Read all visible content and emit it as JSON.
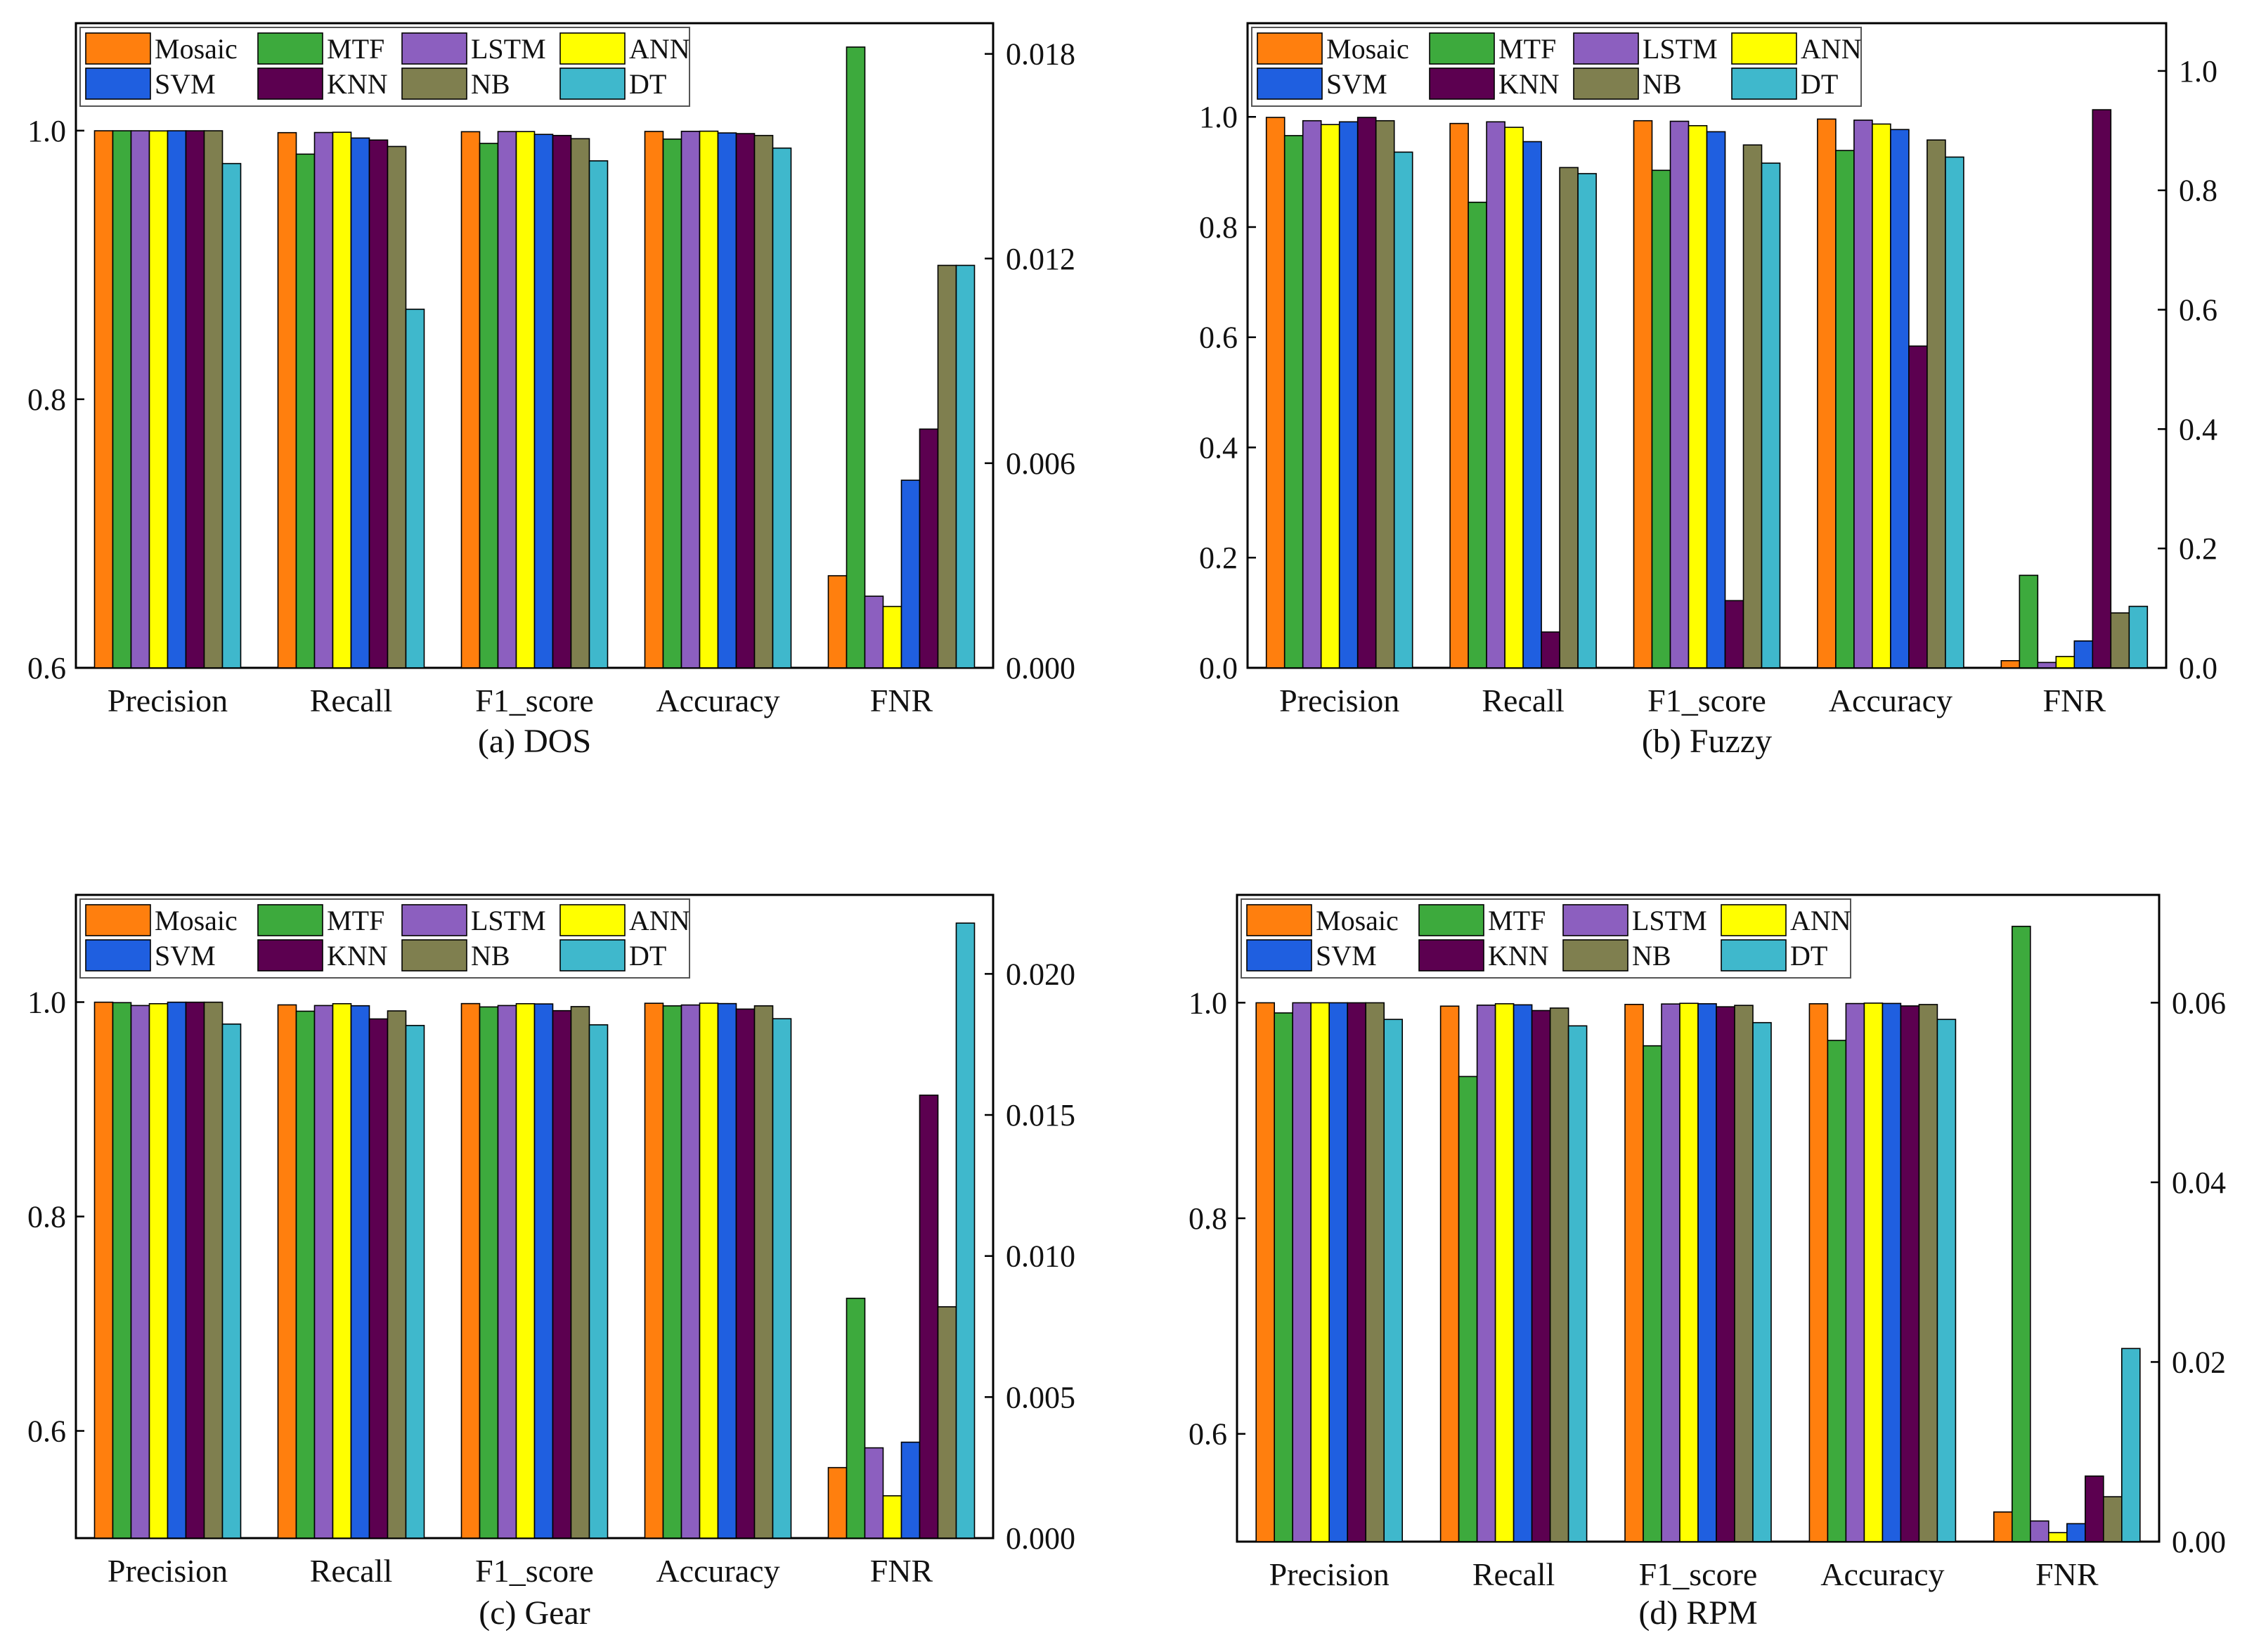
{
  "chart_data": [
    {
      "id": "dos",
      "type": "bar",
      "caption": "(a) DOS",
      "categories": [
        "Precision",
        "Recall",
        "F1_score",
        "Accuracy",
        "FNR"
      ],
      "series": [
        {
          "name": "Mosaic",
          "values": [
            0.9999,
            0.9985,
            0.9992,
            0.9994,
            0.0027
          ]
        },
        {
          "name": "MTF",
          "values": [
            0.9999,
            0.9825,
            0.9905,
            0.9937,
            0.0182
          ]
        },
        {
          "name": "LSTM",
          "values": [
            0.9999,
            0.9986,
            0.9993,
            0.9995,
            0.0021
          ]
        },
        {
          "name": "ANN",
          "values": [
            0.9998,
            0.9988,
            0.9993,
            0.9996,
            0.0018
          ]
        },
        {
          "name": "SVM",
          "values": [
            0.9999,
            0.9945,
            0.9972,
            0.9983,
            0.0055
          ]
        },
        {
          "name": "KNN",
          "values": [
            0.9999,
            0.993,
            0.9964,
            0.9978,
            0.007
          ]
        },
        {
          "name": "NB",
          "values": [
            0.9999,
            0.9882,
            0.994,
            0.9964,
            0.0118
          ]
        },
        {
          "name": "DT",
          "values": [
            0.9755,
            0.867,
            0.9775,
            0.987,
            0.0118
          ]
        }
      ],
      "primary_axis": {
        "ylim": [
          0.6,
          1.08
        ],
        "ticks": [
          "0.6",
          "0.8",
          "1.0"
        ],
        "tick_values": [
          0.6,
          0.8,
          1.0
        ]
      },
      "secondary_axis": {
        "ylim": [
          0.0,
          0.0189
        ],
        "ticks": [
          "0.000",
          "0.006",
          "0.012",
          "0.018"
        ],
        "tick_values": [
          0.0,
          0.006,
          0.012,
          0.018
        ],
        "applies_to": "FNR"
      },
      "legend": "top-left"
    },
    {
      "id": "fuzzy",
      "type": "bar",
      "caption": "(b) Fuzzy",
      "categories": [
        "Precision",
        "Recall",
        "F1_score",
        "Accuracy",
        "FNR"
      ],
      "series": [
        {
          "name": "Mosaic",
          "values": [
            0.999,
            0.988,
            0.993,
            0.996,
            0.012
          ]
        },
        {
          "name": "MTF",
          "values": [
            0.966,
            0.845,
            0.903,
            0.939,
            0.155
          ]
        },
        {
          "name": "LSTM",
          "values": [
            0.993,
            0.991,
            0.992,
            0.994,
            0.009
          ]
        },
        {
          "name": "ANN",
          "values": [
            0.986,
            0.981,
            0.984,
            0.987,
            0.019
          ]
        },
        {
          "name": "SVM",
          "values": [
            0.991,
            0.955,
            0.973,
            0.977,
            0.045
          ]
        },
        {
          "name": "KNN",
          "values": [
            0.999,
            0.065,
            0.122,
            0.584,
            0.935
          ]
        },
        {
          "name": "NB",
          "values": [
            0.993,
            0.908,
            0.949,
            0.958,
            0.092
          ]
        },
        {
          "name": "DT",
          "values": [
            0.936,
            0.897,
            0.916,
            0.927,
            0.103
          ]
        }
      ],
      "primary_axis": {
        "ylim": [
          0.0,
          1.17
        ],
        "ticks": [
          "0.0",
          "0.2",
          "0.4",
          "0.6",
          "0.8",
          "1.0"
        ],
        "tick_values": [
          0.0,
          0.2,
          0.4,
          0.6,
          0.8,
          1.0
        ]
      },
      "secondary_axis": {
        "ylim": [
          0.0,
          1.08
        ],
        "ticks": [
          "0.0",
          "0.2",
          "0.4",
          "0.6",
          "0.8",
          "1.0"
        ],
        "tick_values": [
          0.0,
          0.2,
          0.4,
          0.6,
          0.8,
          1.0
        ],
        "applies_to": "FNR"
      },
      "legend": "top-left"
    },
    {
      "id": "gear",
      "type": "bar",
      "caption": "(c) Gear",
      "categories": [
        "Precision",
        "Recall",
        "F1_score",
        "Accuracy",
        "FNR"
      ],
      "series": [
        {
          "name": "Mosaic",
          "values": [
            0.9999,
            0.9974,
            0.9986,
            0.9989,
            0.0025
          ]
        },
        {
          "name": "MTF",
          "values": [
            0.9995,
            0.9915,
            0.9955,
            0.9965,
            0.0085
          ]
        },
        {
          "name": "LSTM",
          "values": [
            0.9968,
            0.9968,
            0.9968,
            0.9973,
            0.0032
          ]
        },
        {
          "name": "ANN",
          "values": [
            0.9985,
            0.9985,
            0.9985,
            0.999,
            0.0015
          ]
        },
        {
          "name": "SVM",
          "values": [
            0.9999,
            0.9966,
            0.9983,
            0.9986,
            0.0034
          ]
        },
        {
          "name": "KNN",
          "values": [
            0.9999,
            0.9843,
            0.992,
            0.9935,
            0.0157
          ]
        },
        {
          "name": "NB",
          "values": [
            0.9999,
            0.9918,
            0.9958,
            0.9965,
            0.0082
          ]
        },
        {
          "name": "DT",
          "values": [
            0.9795,
            0.9782,
            0.9788,
            0.9845,
            0.0218
          ]
        }
      ],
      "primary_axis": {
        "ylim": [
          0.5,
          1.1
        ],
        "ticks": [
          "0.6",
          "0.8",
          "1.0"
        ],
        "tick_values": [
          0.6,
          0.8,
          1.0
        ]
      },
      "secondary_axis": {
        "ylim": [
          0.0,
          0.0228
        ],
        "ticks": [
          "0.000",
          "0.005",
          "0.010",
          "0.015",
          "0.020"
        ],
        "tick_values": [
          0.0,
          0.005,
          0.01,
          0.015,
          0.02
        ],
        "applies_to": "FNR"
      },
      "legend": "top-left"
    },
    {
      "id": "rpm",
      "type": "bar",
      "caption": "(d) RPM",
      "categories": [
        "Precision",
        "Recall",
        "F1_score",
        "Accuracy",
        "FNR"
      ],
      "series": [
        {
          "name": "Mosaic",
          "values": [
            0.9999,
            0.9968,
            0.9984,
            0.999,
            0.0033
          ]
        },
        {
          "name": "MTF",
          "values": [
            0.9905,
            0.9315,
            0.96,
            0.965,
            0.0685
          ]
        },
        {
          "name": "LSTM",
          "values": [
            0.9999,
            0.9977,
            0.9988,
            0.9992,
            0.0023
          ]
        },
        {
          "name": "ANN",
          "values": [
            0.9999,
            0.999,
            0.9994,
            0.9996,
            0.001
          ]
        },
        {
          "name": "SVM",
          "values": [
            0.9999,
            0.998,
            0.999,
            0.9993,
            0.002
          ]
        },
        {
          "name": "KNN",
          "values": [
            0.9999,
            0.9927,
            0.9962,
            0.997,
            0.0073
          ]
        },
        {
          "name": "NB",
          "values": [
            0.9999,
            0.995,
            0.9975,
            0.9983,
            0.005
          ]
        },
        {
          "name": "DT",
          "values": [
            0.9845,
            0.9785,
            0.9815,
            0.9845,
            0.0215
          ]
        }
      ],
      "primary_axis": {
        "ylim": [
          0.5,
          1.1
        ],
        "ticks": [
          "0.6",
          "0.8",
          "1.0"
        ],
        "tick_values": [
          0.6,
          0.8,
          1.0
        ]
      },
      "secondary_axis": {
        "ylim": [
          0.0,
          0.072
        ],
        "ticks": [
          "0.00",
          "0.02",
          "0.04",
          "0.06"
        ],
        "tick_values": [
          0.0,
          0.02,
          0.04,
          0.06
        ],
        "applies_to": "FNR"
      },
      "legend": "top-left"
    }
  ],
  "series_colors": {
    "Mosaic": "#FF7F0E",
    "MTF": "#3DAA3D",
    "LSTM": "#8C5FBF",
    "ANN": "#FFFF00",
    "SVM": "#1F5FE0",
    "KNN": "#5C0050",
    "NB": "#7F7F4F",
    "DT": "#3FB8CC"
  },
  "legend_order": [
    "Mosaic",
    "MTF",
    "LSTM",
    "ANN",
    "SVM",
    "KNN",
    "NB",
    "DT"
  ]
}
